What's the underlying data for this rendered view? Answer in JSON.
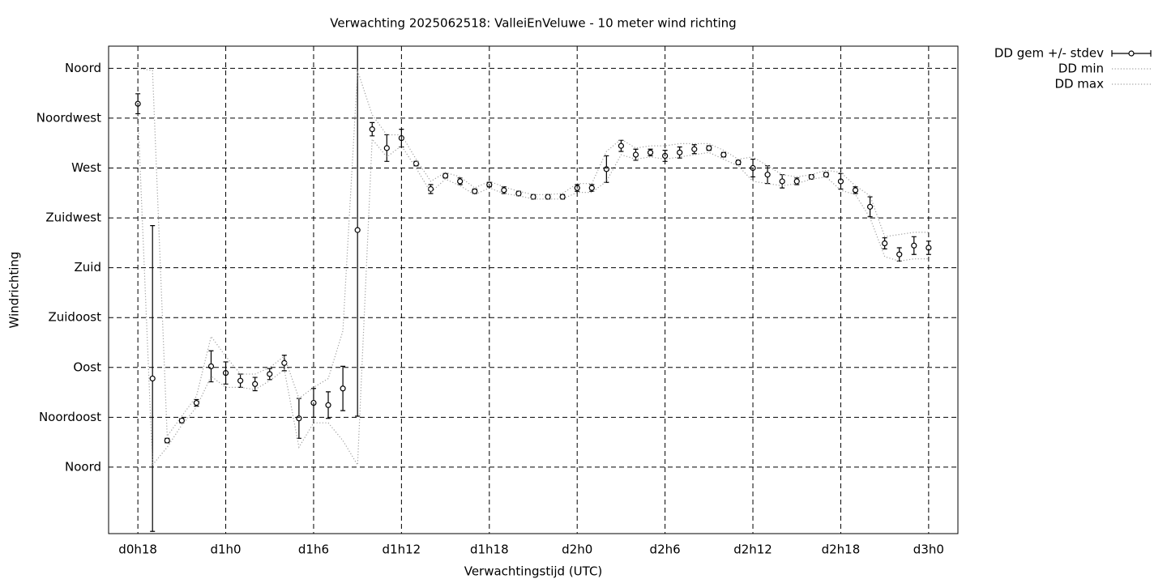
{
  "chart_data": {
    "type": "errorbar",
    "title": "Verwachting 2025062518: ValleiEnVeluwe - 10 meter wind richting",
    "xlabel": "Verwachtingstijd (UTC)",
    "ylabel": "Windrichting",
    "x": [
      18,
      19,
      20,
      21,
      22,
      23,
      24,
      25,
      26,
      27,
      28,
      29,
      30,
      31,
      32,
      33,
      34,
      35,
      36,
      37,
      38,
      39,
      40,
      41,
      42,
      43,
      44,
      45,
      46,
      47,
      48,
      49,
      50,
      51,
      52,
      53,
      54,
      55,
      56,
      57,
      58,
      59,
      60,
      61,
      62,
      63,
      64,
      65,
      66,
      67,
      68,
      69,
      70,
      71,
      72
    ],
    "xlim": [
      16,
      74
    ],
    "xticks": [
      {
        "value": 18,
        "label": "d0h18"
      },
      {
        "value": 24,
        "label": "d1h0"
      },
      {
        "value": 30,
        "label": "d1h6"
      },
      {
        "value": 36,
        "label": "d1h12"
      },
      {
        "value": 42,
        "label": "d1h18"
      },
      {
        "value": 48,
        "label": "d2h0"
      },
      {
        "value": 54,
        "label": "d2h6"
      },
      {
        "value": 60,
        "label": "d2h12"
      },
      {
        "value": 66,
        "label": "d2h18"
      },
      {
        "value": 72,
        "label": "d3h0"
      }
    ],
    "ylim": [
      -60,
      380
    ],
    "yticks": [
      {
        "value": 0,
        "label": "Noord"
      },
      {
        "value": 45,
        "label": "Noordoost"
      },
      {
        "value": 90,
        "label": "Oost"
      },
      {
        "value": 135,
        "label": "Zuidoost"
      },
      {
        "value": 180,
        "label": "Zuid"
      },
      {
        "value": 225,
        "label": "Zuidwest"
      },
      {
        "value": 270,
        "label": "West"
      },
      {
        "value": 315,
        "label": "Noordwest"
      },
      {
        "value": 360,
        "label": "Noord"
      }
    ],
    "grid": true,
    "legend": "outside-top-right",
    "series": [
      {
        "name": "DD gem +/- stdev",
        "color": "#000000",
        "values": [
          328,
          80,
          24,
          42,
          58,
          91,
          85,
          78,
          75,
          84,
          94,
          44,
          58,
          56,
          71,
          214,
          305,
          288,
          297,
          274,
          251,
          263,
          258,
          249,
          255,
          250,
          247,
          244,
          244,
          244,
          252,
          252,
          269,
          290,
          282,
          284,
          281,
          284,
          287,
          288,
          282,
          275,
          270,
          264,
          258,
          258,
          262,
          264,
          258,
          250,
          235,
          202,
          192,
          200,
          198
        ],
        "errors": [
          9,
          138,
          2,
          2,
          3,
          14,
          10,
          6,
          6,
          5,
          7,
          18,
          13,
          12,
          20,
          168,
          6,
          12,
          8,
          2,
          4,
          2,
          3,
          2,
          2,
          3,
          2,
          2,
          2,
          2,
          3,
          3,
          12,
          5,
          5,
          3,
          5,
          5,
          4,
          2,
          2,
          2,
          8,
          8,
          6,
          3,
          2,
          2,
          7,
          3,
          9,
          5,
          6,
          8,
          6
        ]
      },
      {
        "name": "DD min",
        "color": "#a0a0a0",
        "values": [
          320,
          2,
          18,
          38,
          54,
          82,
          72,
          72,
          70,
          78,
          88,
          18,
          40,
          40,
          24,
          2,
          296,
          280,
          290,
          270,
          248,
          260,
          254,
          246,
          252,
          247,
          245,
          242,
          242,
          242,
          248,
          248,
          258,
          282,
          278,
          280,
          278,
          280,
          282,
          284,
          278,
          272,
          258,
          256,
          254,
          256,
          260,
          262,
          250,
          246,
          225,
          190,
          186,
          188,
          188
        ]
      },
      {
        "name": "DD max",
        "color": "#a0a0a0",
        "values": [
          360,
          358,
          28,
          46,
          64,
          118,
          100,
          84,
          84,
          90,
          100,
          62,
          72,
          80,
          123,
          358,
          318,
          300,
          300,
          278,
          258,
          266,
          262,
          252,
          258,
          253,
          249,
          246,
          246,
          247,
          256,
          256,
          285,
          296,
          288,
          290,
          290,
          292,
          292,
          292,
          286,
          278,
          280,
          272,
          264,
          262,
          264,
          268,
          266,
          254,
          245,
          208,
          210,
          212,
          212
        ]
      }
    ]
  }
}
